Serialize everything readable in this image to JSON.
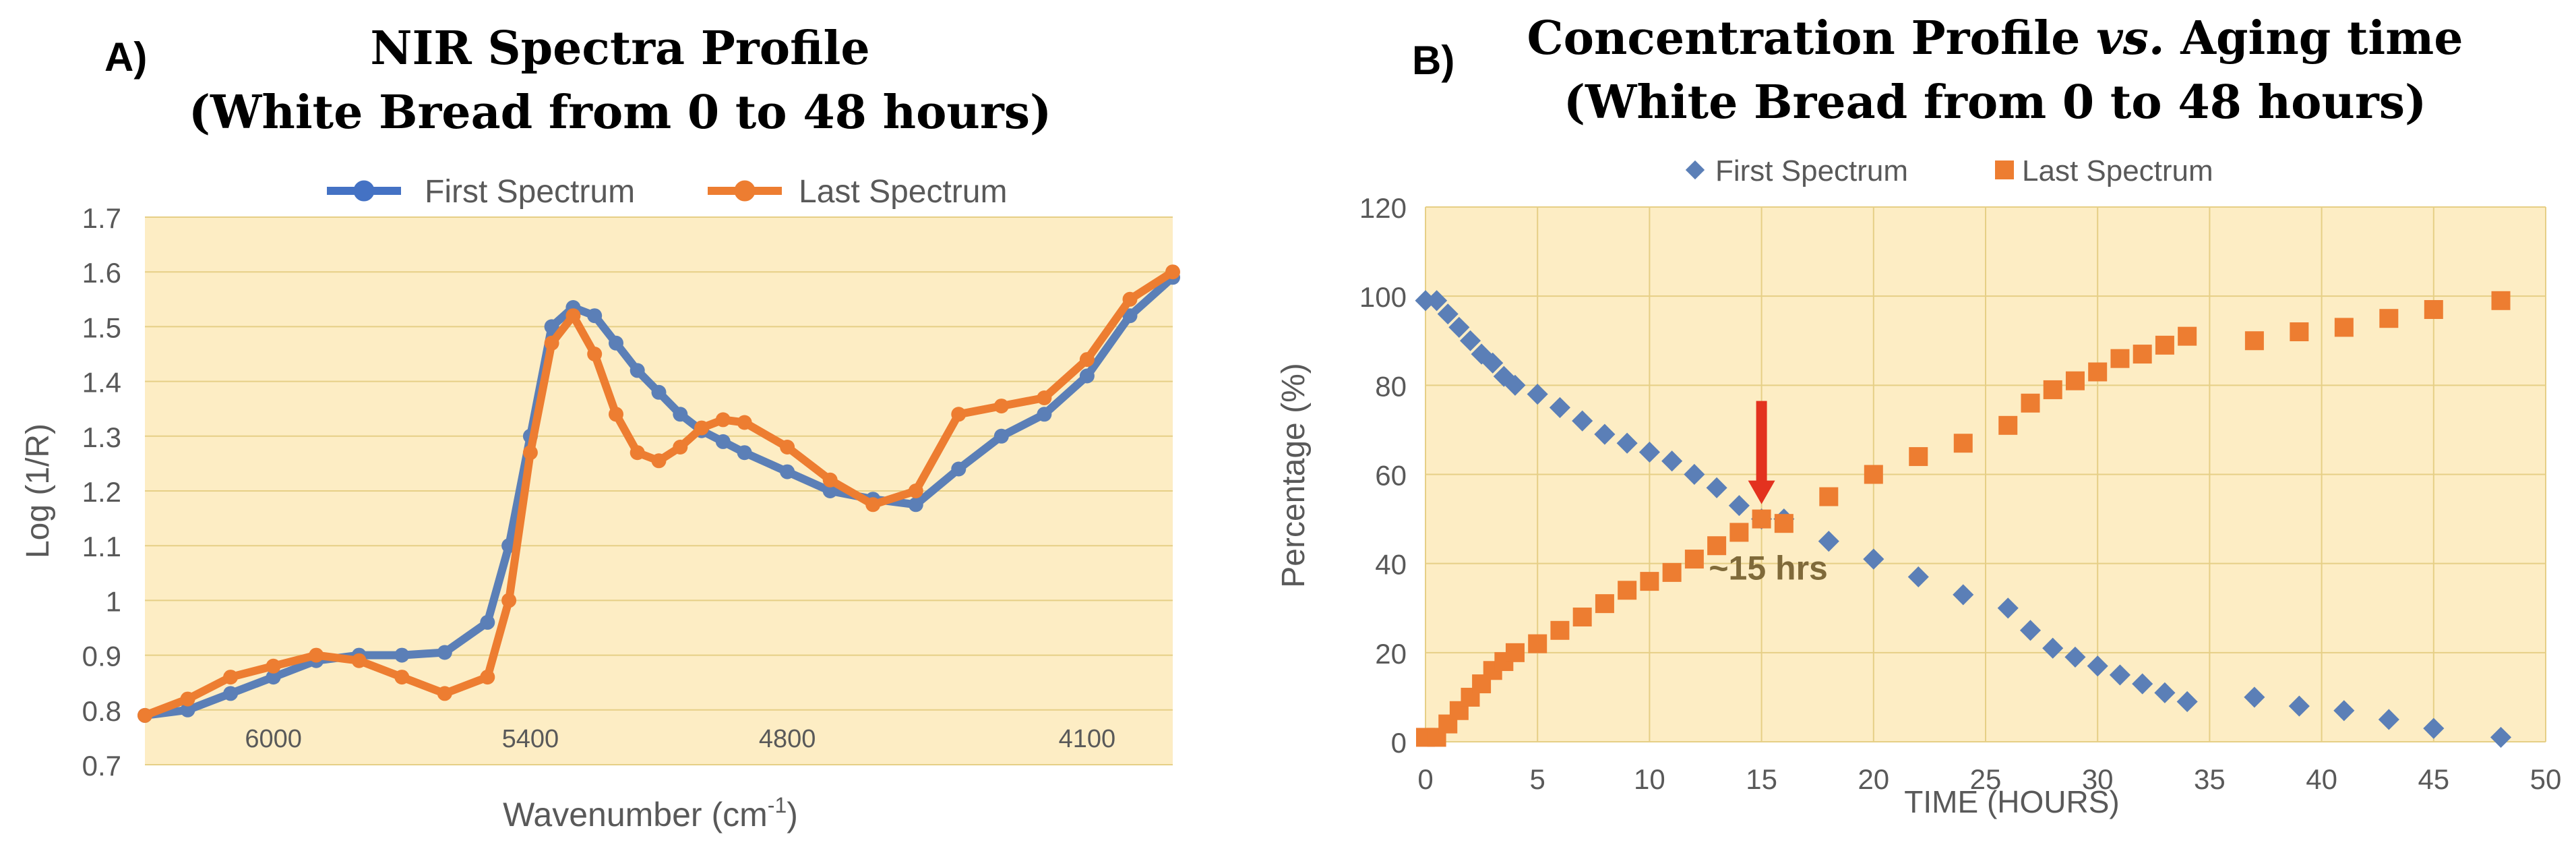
{
  "colors": {
    "plot_bg": "#fdedc4",
    "grid": "#e6cf86",
    "first": "#5b7fb7",
    "first_line": "#4472c4",
    "last": "#ed7d31",
    "arrow": "#e3321f"
  },
  "chart_data": [
    {
      "type": "line",
      "panel_label": "A)",
      "title_line1": "NIR Spectra Profile",
      "title_line2": "(White Bread from 0 to 48 hours)",
      "xlabel_main": "Wavenumber (cm",
      "xlabel_sup": "-1",
      "xlabel_end": ")",
      "ylabel": "Log (1/R)",
      "ylim": [
        0.7,
        1.7
      ],
      "yticks": [
        "0.7",
        "0.8",
        "0.9",
        "1",
        "1.1",
        "1.2",
        "1.3",
        "1.4",
        "1.5",
        "1.6",
        "1.7"
      ],
      "xlim": [
        6300,
        3900
      ],
      "xtick_labels": [
        {
          "label": "6000",
          "value": 6000
        },
        {
          "label": "5400",
          "value": 5400
        },
        {
          "label": "4800",
          "value": 4800
        },
        {
          "label": "4100",
          "value": 4100
        }
      ],
      "legend": [
        "First Spectrum",
        "Last Spectrum"
      ],
      "series": [
        {
          "name": "First Spectrum",
          "x": [
            6300,
            6200,
            6100,
            6000,
            5900,
            5800,
            5700,
            5600,
            5500,
            5450,
            5400,
            5350,
            5300,
            5250,
            5200,
            5150,
            5100,
            5050,
            5000,
            4950,
            4900,
            4800,
            4700,
            4600,
            4500,
            4400,
            4300,
            4200,
            4100,
            4000,
            3900
          ],
          "y": [
            0.79,
            0.8,
            0.83,
            0.86,
            0.89,
            0.9,
            0.9,
            0.905,
            0.96,
            1.1,
            1.3,
            1.5,
            1.535,
            1.52,
            1.47,
            1.42,
            1.38,
            1.34,
            1.31,
            1.29,
            1.27,
            1.235,
            1.2,
            1.185,
            1.175,
            1.24,
            1.3,
            1.34,
            1.41,
            1.52,
            1.59
          ]
        },
        {
          "name": "Last Spectrum",
          "x": [
            6300,
            6200,
            6100,
            6000,
            5900,
            5800,
            5700,
            5600,
            5500,
            5450,
            5400,
            5350,
            5300,
            5250,
            5200,
            5150,
            5100,
            5050,
            5000,
            4950,
            4900,
            4800,
            4700,
            4600,
            4500,
            4400,
            4300,
            4200,
            4100,
            4000,
            3900
          ],
          "y": [
            0.79,
            0.82,
            0.86,
            0.88,
            0.9,
            0.89,
            0.86,
            0.83,
            0.86,
            1.0,
            1.27,
            1.47,
            1.52,
            1.45,
            1.34,
            1.27,
            1.255,
            1.28,
            1.315,
            1.33,
            1.325,
            1.28,
            1.22,
            1.175,
            1.2,
            1.34,
            1.355,
            1.37,
            1.44,
            1.55,
            1.6
          ]
        }
      ]
    },
    {
      "type": "scatter",
      "panel_label": "B)",
      "title_line1_a": "Concentration Profile ",
      "title_line1_b": "vs.",
      "title_line1_c": " Aging time",
      "title_line2": "(White Bread from 0 to 48 hours)",
      "xlabel": "TIME (HOURS)",
      "ylabel": "Percentage (%)",
      "xlim": [
        0,
        50
      ],
      "ylim": [
        0,
        120
      ],
      "xticks": [
        "0",
        "5",
        "10",
        "15",
        "20",
        "25",
        "30",
        "35",
        "40",
        "45",
        "50"
      ],
      "yticks": [
        "0",
        "20",
        "40",
        "60",
        "80",
        "100",
        "120"
      ],
      "legend": [
        "First Spectrum",
        "Last Spectrum"
      ],
      "annotation": {
        "text": "~15 hrs",
        "x": 15,
        "y": 50
      },
      "series": [
        {
          "name": "First Spectrum",
          "x": [
            0,
            0.5,
            1,
            1.5,
            2,
            2.5,
            3,
            3.5,
            4,
            5,
            6,
            7,
            8,
            9,
            10,
            11,
            12,
            13,
            14,
            15,
            16,
            18,
            20,
            22,
            24,
            26,
            27,
            28,
            29,
            30,
            31,
            32,
            33,
            34,
            37,
            39,
            41,
            43,
            45,
            48
          ],
          "y": [
            99,
            99,
            96,
            93,
            90,
            87,
            85,
            82,
            80,
            78,
            75,
            72,
            69,
            67,
            65,
            63,
            60,
            57,
            53,
            50,
            50,
            45,
            41,
            37,
            33,
            30,
            25,
            21,
            19,
            17,
            15,
            13,
            11,
            9,
            10,
            8,
            7,
            5,
            3,
            1
          ]
        },
        {
          "name": "Last Spectrum",
          "x": [
            0,
            0.5,
            1,
            1.5,
            2,
            2.5,
            3,
            3.5,
            4,
            5,
            6,
            7,
            8,
            9,
            10,
            11,
            12,
            13,
            14,
            15,
            16,
            18,
            20,
            22,
            24,
            26,
            27,
            28,
            29,
            30,
            31,
            32,
            33,
            34,
            37,
            39,
            41,
            43,
            45,
            48
          ],
          "y": [
            1,
            1,
            4,
            7,
            10,
            13,
            16,
            18,
            20,
            22,
            25,
            28,
            31,
            34,
            36,
            38,
            41,
            44,
            47,
            50,
            49,
            55,
            60,
            64,
            67,
            71,
            76,
            79,
            81,
            83,
            86,
            87,
            89,
            91,
            90,
            92,
            93,
            95,
            97,
            99
          ]
        }
      ]
    }
  ]
}
